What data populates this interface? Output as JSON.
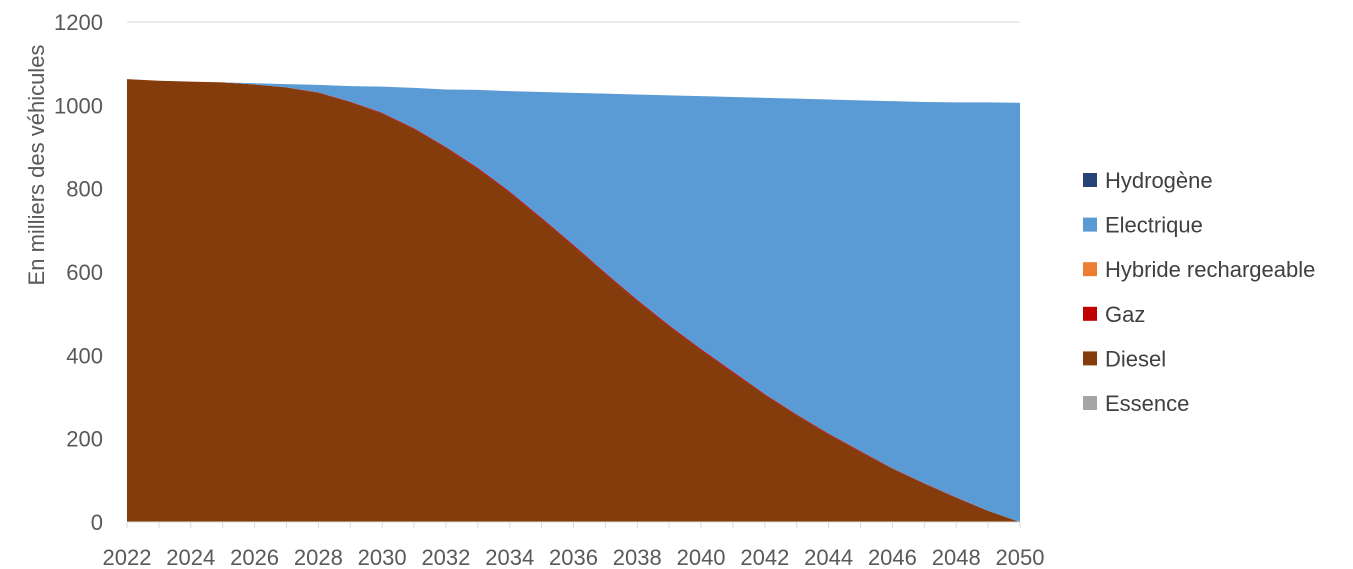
{
  "chart_data": {
    "type": "area",
    "stacked": true,
    "ylabel": "En milliers des véhicules",
    "xlabel": "",
    "title": "",
    "ylim": [
      0,
      1200
    ],
    "xlim": [
      2022,
      2050
    ],
    "yticks": [
      0,
      200,
      400,
      600,
      800,
      1000,
      1200
    ],
    "xticks": [
      2022,
      2024,
      2026,
      2028,
      2030,
      2032,
      2034,
      2036,
      2038,
      2040,
      2042,
      2044,
      2046,
      2048,
      2050
    ],
    "grid": true,
    "legend_position": "right",
    "x": [
      2022,
      2023,
      2024,
      2025,
      2026,
      2027,
      2028,
      2029,
      2030,
      2031,
      2032,
      2033,
      2034,
      2035,
      2036,
      2037,
      2038,
      2039,
      2040,
      2041,
      2042,
      2043,
      2044,
      2045,
      2046,
      2047,
      2048,
      2049,
      2050
    ],
    "series": [
      {
        "name": "Essence",
        "color": "#a5a5a5",
        "values": [
          0,
          0,
          0,
          0,
          0,
          0,
          0,
          0,
          0,
          0,
          0,
          0,
          0,
          0,
          0,
          0,
          0,
          0,
          0,
          0,
          0,
          0,
          0,
          0,
          0,
          0,
          0,
          0,
          0
        ]
      },
      {
        "name": "Diesel",
        "color": "#843c0c",
        "values": [
          1063,
          1059,
          1057,
          1055,
          1050,
          1043,
          1030,
          1008,
          980,
          943,
          898,
          847,
          790,
          727,
          662,
          595,
          530,
          469,
          412,
          358,
          305,
          256,
          210,
          168,
          128,
          92,
          58,
          27,
          0
        ]
      },
      {
        "name": "Gaz",
        "color": "#c00000",
        "values": [
          0,
          0,
          0,
          0,
          0,
          0,
          1,
          1,
          2,
          2,
          2,
          3,
          3,
          3,
          3,
          3,
          3,
          3,
          3,
          3,
          2,
          2,
          2,
          2,
          1,
          1,
          1,
          0,
          0
        ]
      },
      {
        "name": "Hybride rechargeable",
        "color": "#ed7d31",
        "values": [
          0,
          0,
          0,
          0,
          0,
          0,
          0,
          0,
          0,
          0,
          0,
          0,
          0,
          0,
          0,
          0,
          0,
          0,
          0,
          0,
          0,
          0,
          0,
          0,
          0,
          0,
          0,
          0,
          0
        ]
      },
      {
        "name": "Electrique",
        "color": "#5b9bd5",
        "values": [
          0,
          0,
          0,
          0,
          3,
          8,
          18,
          37,
          63,
          97,
          138,
          187,
          241,
          302,
          365,
          430,
          493,
          552,
          607,
          659,
          711,
          758,
          802,
          842,
          881,
          915,
          948,
          980,
          1006
        ]
      },
      {
        "name": "Hydrogène",
        "color": "#264478",
        "values": [
          0,
          0,
          0,
          0,
          0,
          0,
          0,
          0,
          0,
          0,
          0,
          0,
          0,
          0,
          0,
          0,
          0,
          0,
          0,
          0,
          0,
          0,
          0,
          0,
          0,
          0,
          0,
          0,
          0
        ]
      }
    ],
    "legend_order": [
      "Hydrogène",
      "Electrique",
      "Hybride rechargeable",
      "Gaz",
      "Diesel",
      "Essence"
    ]
  }
}
